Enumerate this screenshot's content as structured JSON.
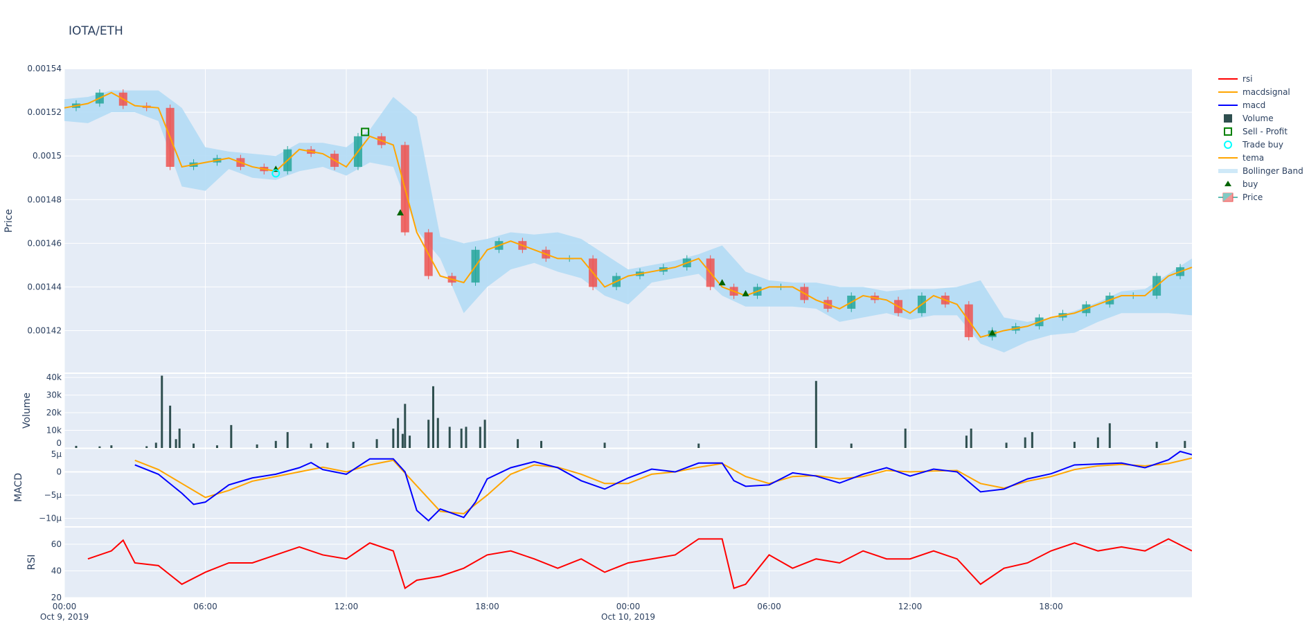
{
  "title": "IOTA/ETH",
  "colors": {
    "plot_bg": "#E5ECF6",
    "grid": "#ffffff",
    "increasing": "#26a69a",
    "decreasing": "#ef5350",
    "bb": "#b3dcf5",
    "tema": "#ffa500",
    "volume": "#2f4f4f",
    "macd": "#0000ff",
    "macdsignal": "#ffa500",
    "rsi": "#ff0000",
    "buy": "#006400",
    "sell": "#008000",
    "trade_buy": "#00ffff"
  },
  "legend": [
    {
      "label": "rsi",
      "kind": "line",
      "color": "#ff0000"
    },
    {
      "label": "macdsignal",
      "kind": "line",
      "color": "#ffa500"
    },
    {
      "label": "macd",
      "kind": "line",
      "color": "#0000ff"
    },
    {
      "label": "Volume",
      "kind": "square",
      "color": "#2f4f4f"
    },
    {
      "label": "Sell - Profit",
      "kind": "open-square",
      "color": "#008000"
    },
    {
      "label": "Trade buy",
      "kind": "open-circle",
      "color": "#00ffff"
    },
    {
      "label": "tema",
      "kind": "line",
      "color": "#ffa500"
    },
    {
      "label": "Bollinger Band",
      "kind": "band",
      "color": "#cfe9f8"
    },
    {
      "label": "buy",
      "kind": "triangle",
      "color": "#006400"
    },
    {
      "label": "Price",
      "kind": "candle",
      "color": "#ef5350"
    }
  ],
  "chart_data": {
    "type": "line",
    "x_unit": "hours since Oct 9, 2019 00:00",
    "x_range": [
      0,
      48
    ],
    "x_ticks": [
      {
        "h": 0,
        "label": "00:00",
        "sub": "Oct 9, 2019"
      },
      {
        "h": 6,
        "label": "06:00",
        "sub": ""
      },
      {
        "h": 12,
        "label": "12:00",
        "sub": ""
      },
      {
        "h": 18,
        "label": "18:00",
        "sub": ""
      },
      {
        "h": 24,
        "label": "00:00",
        "sub": "Oct 10, 2019"
      },
      {
        "h": 30,
        "label": "06:00",
        "sub": ""
      },
      {
        "h": 36,
        "label": "12:00",
        "sub": ""
      },
      {
        "h": 42,
        "label": "18:00",
        "sub": ""
      }
    ],
    "price": {
      "ylabel": "Price",
      "ylim": [
        0.0014008,
        0.0015397
      ],
      "ticks": [
        {
          "v": 0.00142,
          "label": "0.00142"
        },
        {
          "v": 0.00144,
          "label": "0.00144"
        },
        {
          "v": 0.00146,
          "label": "0.00146"
        },
        {
          "v": 0.00148,
          "label": "0.00148"
        },
        {
          "v": 0.0015,
          "label": "0.0015"
        },
        {
          "v": 0.00152,
          "label": "0.00152"
        },
        {
          "v": 0.00154,
          "label": "0.00154"
        }
      ],
      "close": [
        0.001522,
        0.001524,
        0.001529,
        0.001523,
        0.001522,
        0.001495,
        0.001497,
        0.001499,
        0.001495,
        0.001493,
        0.001503,
        0.001501,
        0.001495,
        0.001509,
        0.001505,
        0.001465,
        0.001445,
        0.001442,
        0.001457,
        0.001461,
        0.001457,
        0.001453,
        0.001453,
        0.00144,
        0.001445,
        0.001447,
        0.001449,
        0.001453,
        0.00144,
        0.001436,
        0.00144,
        0.00144,
        0.001434,
        0.00143,
        0.001436,
        0.001434,
        0.001428,
        0.001436,
        0.001432,
        0.001417,
        0.00142,
        0.001422,
        0.001426,
        0.001428,
        0.001432,
        0.001436,
        0.001436,
        0.001445,
        0.001449
      ],
      "bb_upper": [
        0.001526,
        0.001527,
        0.00153,
        0.00153,
        0.00153,
        0.001522,
        0.001504,
        0.001502,
        0.001501,
        0.0015,
        0.001506,
        0.001506,
        0.001504,
        0.001512,
        0.001527,
        0.001518,
        0.001463,
        0.00146,
        0.001462,
        0.001465,
        0.001464,
        0.001465,
        0.001462,
        0.001455,
        0.001448,
        0.00145,
        0.001452,
        0.001455,
        0.001459,
        0.001447,
        0.001443,
        0.001442,
        0.001442,
        0.00144,
        0.00144,
        0.001438,
        0.001439,
        0.001439,
        0.00144,
        0.001443,
        0.001426,
        0.001424,
        0.001426,
        0.001429,
        0.001433,
        0.001438,
        0.001439,
        0.001446,
        0.001453
      ],
      "bb_lower": [
        0.001516,
        0.001515,
        0.00152,
        0.00152,
        0.001516,
        0.001486,
        0.001484,
        0.001494,
        0.00149,
        0.001489,
        0.001493,
        0.001495,
        0.001491,
        0.001497,
        0.001495,
        0.001466,
        0.001453,
        0.001428,
        0.00144,
        0.001448,
        0.001451,
        0.001447,
        0.001444,
        0.001436,
        0.001432,
        0.001442,
        0.001444,
        0.001446,
        0.001436,
        0.001431,
        0.001431,
        0.001431,
        0.00143,
        0.001424,
        0.001426,
        0.001428,
        0.001425,
        0.001427,
        0.001427,
        0.001414,
        0.00141,
        0.001415,
        0.001418,
        0.001419,
        0.001424,
        0.001428,
        0.001428,
        0.001428,
        0.001427
      ],
      "buy_markers": [
        {
          "h": 9,
          "v": 0.001494
        },
        {
          "h": 14.3,
          "v": 0.001474
        },
        {
          "h": 28,
          "v": 0.001442
        },
        {
          "h": 29,
          "v": 0.001437
        },
        {
          "h": 39.5,
          "v": 0.001419
        }
      ],
      "trade_buy": [
        {
          "h": 9,
          "v": 0.001492
        }
      ],
      "sell_profit": [
        {
          "h": 12.8,
          "v": 0.001511
        }
      ]
    },
    "volume": {
      "ylabel": "Volume",
      "ylim": [
        0,
        42000
      ],
      "ticks": [
        {
          "v": 0,
          "label": "0"
        },
        {
          "v": 10000,
          "label": "10k"
        },
        {
          "v": 20000,
          "label": "20k"
        },
        {
          "v": 30000,
          "label": "30k"
        },
        {
          "v": 40000,
          "label": "40k"
        }
      ],
      "bars": [
        {
          "h": 0.5,
          "v": 1200
        },
        {
          "h": 1.5,
          "v": 900
        },
        {
          "h": 2,
          "v": 1500
        },
        {
          "h": 3.5,
          "v": 1000
        },
        {
          "h": 3.9,
          "v": 3000
        },
        {
          "h": 4.15,
          "v": 41000
        },
        {
          "h": 4.5,
          "v": 24000
        },
        {
          "h": 4.75,
          "v": 5000
        },
        {
          "h": 4.9,
          "v": 11000
        },
        {
          "h": 5.5,
          "v": 2500
        },
        {
          "h": 6.5,
          "v": 1500
        },
        {
          "h": 7.1,
          "v": 13000
        },
        {
          "h": 8.2,
          "v": 2000
        },
        {
          "h": 9,
          "v": 4000
        },
        {
          "h": 9.5,
          "v": 9000
        },
        {
          "h": 10.5,
          "v": 2500
        },
        {
          "h": 11.2,
          "v": 3000
        },
        {
          "h": 12.3,
          "v": 3500
        },
        {
          "h": 13.3,
          "v": 5000
        },
        {
          "h": 14,
          "v": 11000
        },
        {
          "h": 14.2,
          "v": 17000
        },
        {
          "h": 14.4,
          "v": 8000
        },
        {
          "h": 14.5,
          "v": 25000
        },
        {
          "h": 14.7,
          "v": 7000
        },
        {
          "h": 15.5,
          "v": 16000
        },
        {
          "h": 15.7,
          "v": 35000
        },
        {
          "h": 15.9,
          "v": 17000
        },
        {
          "h": 16.4,
          "v": 12000
        },
        {
          "h": 16.9,
          "v": 11000
        },
        {
          "h": 17.1,
          "v": 12000
        },
        {
          "h": 17.7,
          "v": 12000
        },
        {
          "h": 17.9,
          "v": 16000
        },
        {
          "h": 19.3,
          "v": 5000
        },
        {
          "h": 20.3,
          "v": 4000
        },
        {
          "h": 23,
          "v": 3000
        },
        {
          "h": 27,
          "v": 2500
        },
        {
          "h": 32,
          "v": 38000
        },
        {
          "h": 33.5,
          "v": 2500
        },
        {
          "h": 35.8,
          "v": 11000
        },
        {
          "h": 38.4,
          "v": 7000
        },
        {
          "h": 38.6,
          "v": 11000
        },
        {
          "h": 40.1,
          "v": 3000
        },
        {
          "h": 40.9,
          "v": 6000
        },
        {
          "h": 41.2,
          "v": 9000
        },
        {
          "h": 43,
          "v": 3500
        },
        {
          "h": 44,
          "v": 6000
        },
        {
          "h": 44.5,
          "v": 14000
        },
        {
          "h": 46.5,
          "v": 3500
        },
        {
          "h": 47.7,
          "v": 4000
        }
      ]
    },
    "macd": {
      "ylabel": "MACD",
      "ylim": [
        -11.7,
        5
      ],
      "unit": "µ",
      "ticks": [
        {
          "v": 5,
          "label": "5µ"
        },
        {
          "v": 0,
          "label": "0"
        },
        {
          "v": -5,
          "label": "−5µ"
        },
        {
          "v": -10,
          "label": "−10µ"
        }
      ],
      "macd": [
        [
          3,
          1.5
        ],
        [
          4,
          -0.5
        ],
        [
          5,
          -4.6
        ],
        [
          5.5,
          -7
        ],
        [
          6,
          -6.5
        ],
        [
          7,
          -2.8
        ],
        [
          8,
          -1.3
        ],
        [
          9,
          -0.5
        ],
        [
          10,
          0.9
        ],
        [
          10.5,
          2
        ],
        [
          11,
          0.5
        ],
        [
          12,
          -0.5
        ],
        [
          13,
          2.8
        ],
        [
          14,
          2.8
        ],
        [
          14.5,
          0
        ],
        [
          15,
          -8.3
        ],
        [
          15.5,
          -10.5
        ],
        [
          16,
          -8
        ],
        [
          17,
          -9.8
        ],
        [
          17.5,
          -6.5
        ],
        [
          18,
          -1.5
        ],
        [
          19,
          0.9
        ],
        [
          20,
          2.2
        ],
        [
          21,
          0.9
        ],
        [
          22,
          -1.9
        ],
        [
          23,
          -3.7
        ],
        [
          24,
          -1.3
        ],
        [
          25,
          0.6
        ],
        [
          26,
          0
        ],
        [
          27,
          1.9
        ],
        [
          28,
          1.9
        ],
        [
          28.5,
          -1.9
        ],
        [
          29,
          -3.1
        ],
        [
          30,
          -2.8
        ],
        [
          31,
          -0.2
        ],
        [
          32,
          -0.9
        ],
        [
          33,
          -2.4
        ],
        [
          34,
          -0.5
        ],
        [
          35,
          0.9
        ],
        [
          36,
          -0.9
        ],
        [
          37,
          0.6
        ],
        [
          38,
          0
        ],
        [
          39,
          -4.3
        ],
        [
          40,
          -3.7
        ],
        [
          41,
          -1.5
        ],
        [
          42,
          -0.4
        ],
        [
          43,
          1.5
        ],
        [
          44,
          1.7
        ],
        [
          45,
          1.9
        ],
        [
          46,
          0.9
        ],
        [
          47,
          2.6
        ],
        [
          47.5,
          4.4
        ],
        [
          48,
          3.7
        ]
      ],
      "macdsignal": [
        [
          3,
          2.5
        ],
        [
          4,
          0.5
        ],
        [
          5,
          -2.5
        ],
        [
          6,
          -5.5
        ],
        [
          7,
          -4
        ],
        [
          8,
          -2
        ],
        [
          9,
          -1
        ],
        [
          10,
          0
        ],
        [
          11,
          1
        ],
        [
          12,
          0
        ],
        [
          13,
          1.5
        ],
        [
          14,
          2.5
        ],
        [
          15,
          -3
        ],
        [
          16,
          -8.5
        ],
        [
          17,
          -9
        ],
        [
          18,
          -5
        ],
        [
          19,
          -0.5
        ],
        [
          20,
          1.5
        ],
        [
          21,
          1
        ],
        [
          22,
          -0.5
        ],
        [
          23,
          -2.5
        ],
        [
          24,
          -2.5
        ],
        [
          25,
          -0.5
        ],
        [
          26,
          0
        ],
        [
          27,
          1
        ],
        [
          28,
          1.8
        ],
        [
          29,
          -1
        ],
        [
          30,
          -2.5
        ],
        [
          31,
          -1
        ],
        [
          32,
          -0.8
        ],
        [
          33,
          -1.5
        ],
        [
          34,
          -1
        ],
        [
          35,
          0.3
        ],
        [
          36,
          0
        ],
        [
          37,
          0.2
        ],
        [
          38,
          0.3
        ],
        [
          39,
          -2.5
        ],
        [
          40,
          -3.5
        ],
        [
          41,
          -2
        ],
        [
          42,
          -1
        ],
        [
          43,
          0.5
        ],
        [
          44,
          1.3
        ],
        [
          45,
          1.6
        ],
        [
          46,
          1.3
        ],
        [
          47,
          1.8
        ],
        [
          48,
          3
        ]
      ]
    },
    "rsi": {
      "ylabel": "RSI",
      "ylim": [
        20,
        72.5
      ],
      "ticks": [
        {
          "v": 20,
          "label": "20"
        },
        {
          "v": 40,
          "label": "40"
        },
        {
          "v": 60,
          "label": "60"
        }
      ],
      "rsi": [
        [
          1,
          49
        ],
        [
          2,
          55
        ],
        [
          2.5,
          63
        ],
        [
          3,
          46
        ],
        [
          4,
          44
        ],
        [
          5,
          30
        ],
        [
          6,
          39
        ],
        [
          7,
          46
        ],
        [
          8,
          46
        ],
        [
          9,
          52
        ],
        [
          10,
          58
        ],
        [
          11,
          52
        ],
        [
          12,
          49
        ],
        [
          13,
          61
        ],
        [
          14,
          55
        ],
        [
          14.5,
          27
        ],
        [
          15,
          33
        ],
        [
          16,
          36
        ],
        [
          17,
          42
        ],
        [
          18,
          52
        ],
        [
          19,
          55
        ],
        [
          20,
          49
        ],
        [
          21,
          42
        ],
        [
          22,
          49
        ],
        [
          23,
          39
        ],
        [
          24,
          46
        ],
        [
          25,
          49
        ],
        [
          26,
          52
        ],
        [
          27,
          64
        ],
        [
          28,
          64
        ],
        [
          28.5,
          27
        ],
        [
          29,
          30
        ],
        [
          30,
          52
        ],
        [
          31,
          42
        ],
        [
          32,
          49
        ],
        [
          33,
          46
        ],
        [
          34,
          55
        ],
        [
          35,
          49
        ],
        [
          36,
          49
        ],
        [
          37,
          55
        ],
        [
          38,
          49
        ],
        [
          39,
          30
        ],
        [
          40,
          42
        ],
        [
          41,
          46
        ],
        [
          42,
          55
        ],
        [
          43,
          61
        ],
        [
          44,
          55
        ],
        [
          45,
          58
        ],
        [
          46,
          55
        ],
        [
          47,
          64
        ],
        [
          48,
          55
        ]
      ]
    }
  }
}
